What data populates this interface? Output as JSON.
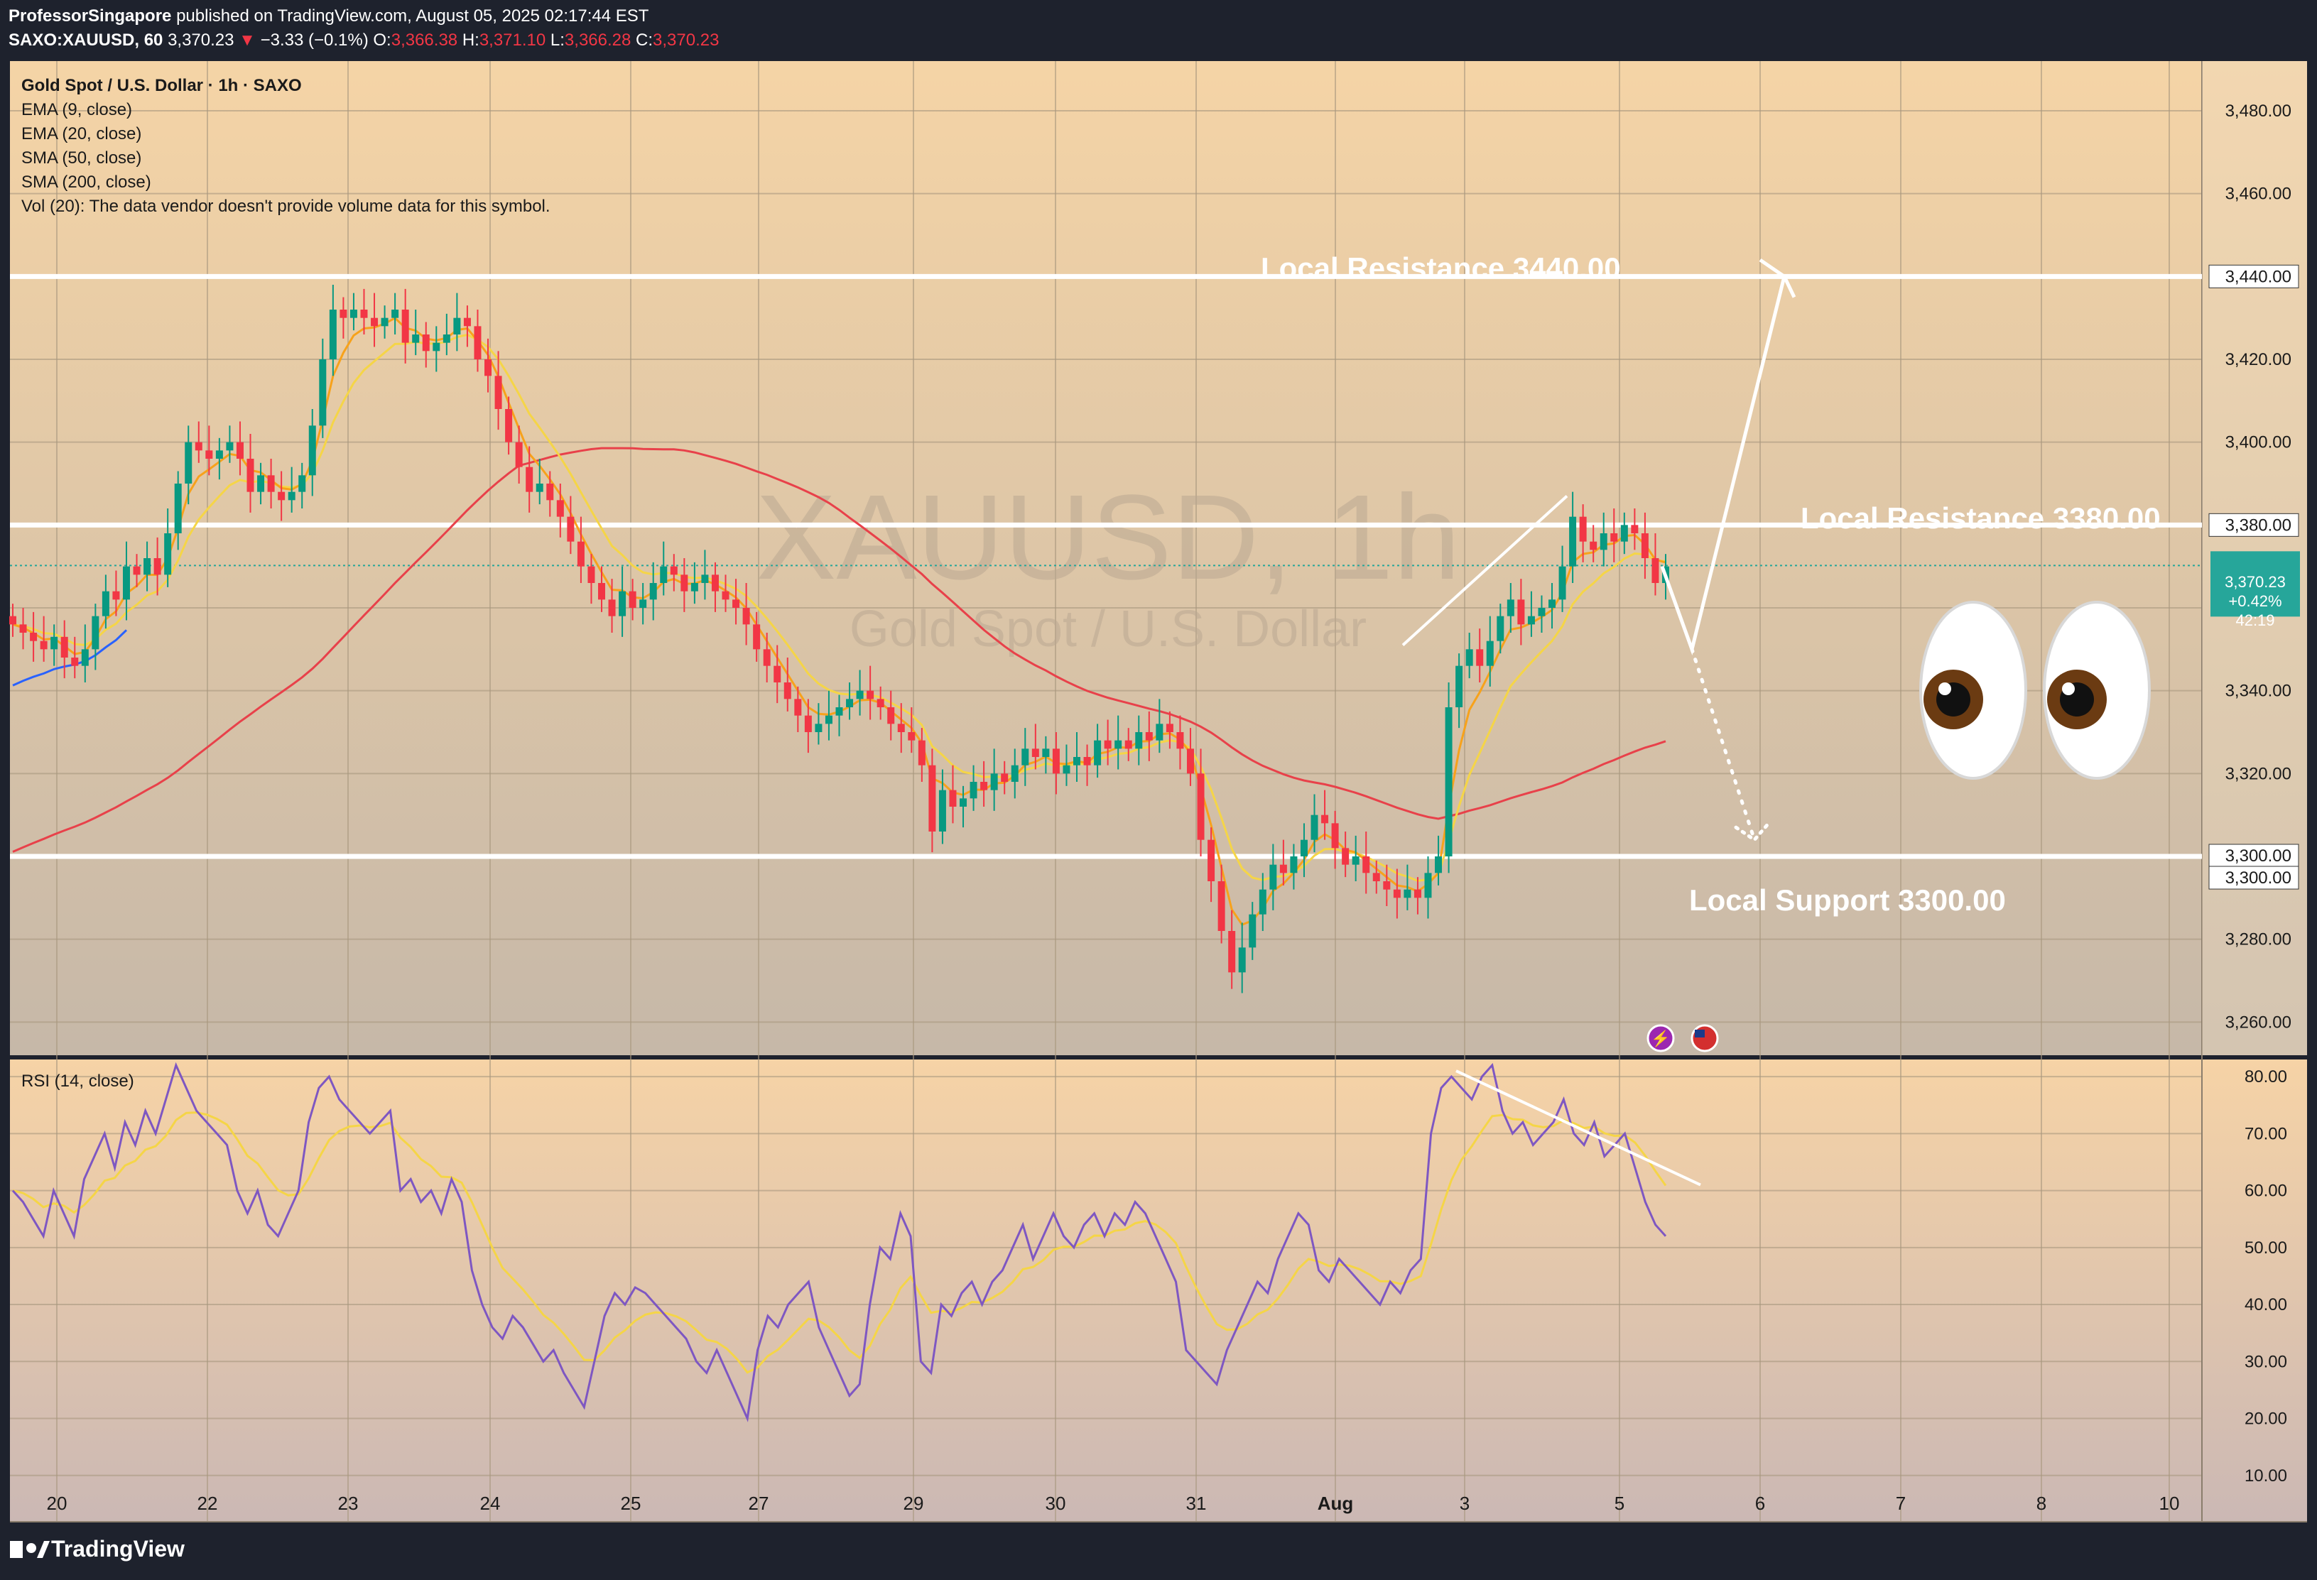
{
  "header": {
    "publisher": "ProfessorSingapore",
    "publish_text": " published on TradingView.com, August 05, 2025 02:17:44 EST",
    "symbol_interval": "SAXO:XAUUSD, 60",
    "last": "3,370.23",
    "change_arrow": "▼",
    "change": "−3.33 (−0.1%)",
    "o_label": "O:",
    "o_value": "3,366.38",
    "h_label": "H:",
    "h_value": "3,371.10",
    "l_label": "L:",
    "l_value": "3,366.28",
    "c_label": "C:",
    "c_value": "3,370.23"
  },
  "legend": {
    "title": "Gold Spot / U.S. Dollar · 1h · SAXO",
    "items": [
      "EMA (9, close)",
      "EMA (20, close)",
      "SMA (50, close)",
      "SMA (200, close)",
      "Vol (20): The data vendor doesn't provide volume data for this symbol."
    ]
  },
  "watermark": {
    "symbol": "XAUUSD, 1h",
    "description": "Gold Spot / U.S. Dollar"
  },
  "price_badge": {
    "price": "3,370.23",
    "change": "+0.42%",
    "countdown": "42:19"
  },
  "annotations": {
    "resistance_high": "Local Resistance 3440.00",
    "resistance_low": "Local Resistance 3380.00",
    "support": "Local Support 3300.00",
    "emoji": "👀"
  },
  "rsi_label": "RSI (14, close)",
  "footer": {
    "logo": "TradingView"
  },
  "colors": {
    "up": "#089981",
    "down": "#f23645",
    "ema9": "#f7a21b",
    "ema20": "#f5d547",
    "sma50": "#2962ff",
    "sma200": "#e8414a",
    "rsi": "#7e57c2",
    "rsi_ma": "#f5d547",
    "price_line": "#26a69a",
    "background_top": "#f5d4a6",
    "background_bottom": "#c9b8a6"
  },
  "chart_data": [
    {
      "type": "candlestick",
      "title": "Gold Spot / U.S. Dollar · 1h · SAXO",
      "x_tick_labels": [
        "20",
        "22",
        "23",
        "24",
        "25",
        "27",
        "29",
        "30",
        "31",
        "Aug",
        "3",
        "5",
        "6",
        "7",
        "8",
        "10"
      ],
      "y_tick_labels": [
        "3,480.00",
        "3,460.00",
        "3,440.00",
        "3,420.00",
        "3,400.00",
        "3,380.00",
        "3,360.00",
        "3,340.00",
        "3,320.00",
        "3,300.00",
        "3,280.00",
        "3,260.00"
      ],
      "y_ticks": [
        3480,
        3460,
        3440,
        3420,
        3400,
        3380,
        3360,
        3340,
        3320,
        3300,
        3280,
        3260
      ],
      "ylim": [
        3252,
        3492
      ],
      "last_price": 3370.23,
      "level_labels": [
        "3,440.00",
        "3,380.00",
        "3,300.00",
        "3,300.00"
      ],
      "horizontal_levels": [
        3440,
        3380,
        3300
      ],
      "closes": [
        3356,
        3354,
        3352,
        3350,
        3353,
        3348,
        3346,
        3350,
        3358,
        3364,
        3362,
        3370,
        3368,
        3372,
        3368,
        3378,
        3390,
        3400,
        3398,
        3396,
        3398,
        3400,
        3396,
        3388,
        3392,
        3388,
        3386,
        3388,
        3392,
        3404,
        3420,
        3432,
        3430,
        3432,
        3430,
        3428,
        3430,
        3432,
        3424,
        3426,
        3422,
        3424,
        3426,
        3430,
        3428,
        3420,
        3416,
        3408,
        3400,
        3394,
        3388,
        3390,
        3386,
        3382,
        3376,
        3370,
        3366,
        3362,
        3358,
        3364,
        3360,
        3362,
        3366,
        3370,
        3368,
        3364,
        3366,
        3368,
        3364,
        3362,
        3360,
        3356,
        3350,
        3346,
        3342,
        3338,
        3334,
        3330,
        3332,
        3334,
        3336,
        3338,
        3340,
        3338,
        3336,
        3332,
        3330,
        3328,
        3322,
        3306,
        3316,
        3312,
        3314,
        3318,
        3316,
        3320,
        3318,
        3322,
        3326,
        3324,
        3326,
        3320,
        3322,
        3324,
        3322,
        3328,
        3326,
        3328,
        3326,
        3330,
        3328,
        3332,
        3330,
        3326,
        3320,
        3304,
        3294,
        3282,
        3272,
        3278,
        3286,
        3292,
        3298,
        3296,
        3300,
        3304,
        3310,
        3308,
        3302,
        3298,
        3300,
        3296,
        3294,
        3292,
        3290,
        3292,
        3290,
        3296,
        3300,
        3336,
        3346,
        3350,
        3346,
        3352,
        3358,
        3362,
        3356,
        3358,
        3360,
        3362,
        3370,
        3382,
        3376,
        3374,
        3378,
        3376,
        3380,
        3378,
        3372,
        3366,
        3370
      ],
      "opens": [
        3358,
        3356,
        3354,
        3352,
        3350,
        3353,
        3348,
        3346,
        3350,
        3358,
        3364,
        3362,
        3370,
        3368,
        3372,
        3368,
        3378,
        3390,
        3400,
        3398,
        3396,
        3398,
        3400,
        3396,
        3388,
        3392,
        3388,
        3386,
        3388,
        3392,
        3404,
        3420,
        3432,
        3430,
        3432,
        3430,
        3428,
        3430,
        3432,
        3424,
        3426,
        3422,
        3424,
        3426,
        3430,
        3428,
        3420,
        3416,
        3408,
        3400,
        3394,
        3388,
        3390,
        3386,
        3382,
        3376,
        3370,
        3366,
        3362,
        3358,
        3364,
        3360,
        3362,
        3366,
        3370,
        3368,
        3364,
        3366,
        3368,
        3364,
        3362,
        3360,
        3356,
        3350,
        3346,
        3342,
        3338,
        3334,
        3330,
        3332,
        3334,
        3336,
        3338,
        3340,
        3338,
        3336,
        3332,
        3330,
        3328,
        3322,
        3306,
        3316,
        3312,
        3314,
        3318,
        3316,
        3320,
        3318,
        3322,
        3326,
        3324,
        3326,
        3320,
        3322,
        3324,
        3322,
        3328,
        3326,
        3328,
        3326,
        3330,
        3328,
        3332,
        3330,
        3326,
        3320,
        3304,
        3294,
        3282,
        3272,
        3278,
        3286,
        3292,
        3298,
        3296,
        3300,
        3304,
        3310,
        3308,
        3302,
        3298,
        3300,
        3296,
        3294,
        3292,
        3290,
        3292,
        3290,
        3296,
        3300,
        3336,
        3346,
        3350,
        3346,
        3352,
        3358,
        3362,
        3356,
        3358,
        3360,
        3362,
        3370,
        3382,
        3376,
        3374,
        3378,
        3376,
        3380,
        3378,
        3372,
        3366
      ]
    },
    {
      "type": "line",
      "title": "RSI (14, close)",
      "y_tick_labels": [
        "80.00",
        "70.00",
        "60.00",
        "50.00",
        "40.00",
        "30.00",
        "20.00",
        "10.00"
      ],
      "y_ticks": [
        80,
        70,
        60,
        50,
        40,
        30,
        20,
        10
      ],
      "ylim": [
        2,
        83
      ],
      "series": [
        {
          "name": "RSI (14, close)",
          "values": [
            60,
            58,
            55,
            52,
            60,
            56,
            52,
            62,
            66,
            70,
            64,
            72,
            68,
            74,
            70,
            76,
            82,
            78,
            74,
            72,
            70,
            68,
            60,
            56,
            60,
            54,
            52,
            56,
            60,
            72,
            78,
            80,
            76,
            74,
            72,
            70,
            72,
            74,
            60,
            62,
            58,
            60,
            56,
            62,
            58,
            46,
            40,
            36,
            34,
            38,
            36,
            33,
            30,
            32,
            28,
            25,
            22,
            30,
            38,
            42,
            40,
            43,
            42,
            40,
            38,
            36,
            34,
            30,
            28,
            32,
            28,
            24,
            20,
            32,
            38,
            36,
            40,
            42,
            44,
            36,
            32,
            28,
            24,
            26,
            40,
            50,
            48,
            56,
            52,
            30,
            28,
            40,
            38,
            42,
            44,
            40,
            44,
            46,
            50,
            54,
            48,
            52,
            56,
            52,
            50,
            54,
            56,
            52,
            56,
            54,
            58,
            56,
            52,
            48,
            44,
            32,
            30,
            28,
            26,
            32,
            36,
            40,
            44,
            42,
            48,
            52,
            56,
            54,
            46,
            44,
            48,
            46,
            44,
            42,
            40,
            44,
            42,
            46,
            48,
            70,
            78,
            80,
            78,
            76,
            80,
            82,
            74,
            70,
            72,
            68,
            70,
            72,
            76,
            70,
            68,
            72,
            66,
            68,
            70,
            64,
            58,
            54,
            52
          ]
        },
        {
          "name": "RSI-based MA",
          "values": []
        }
      ]
    }
  ]
}
